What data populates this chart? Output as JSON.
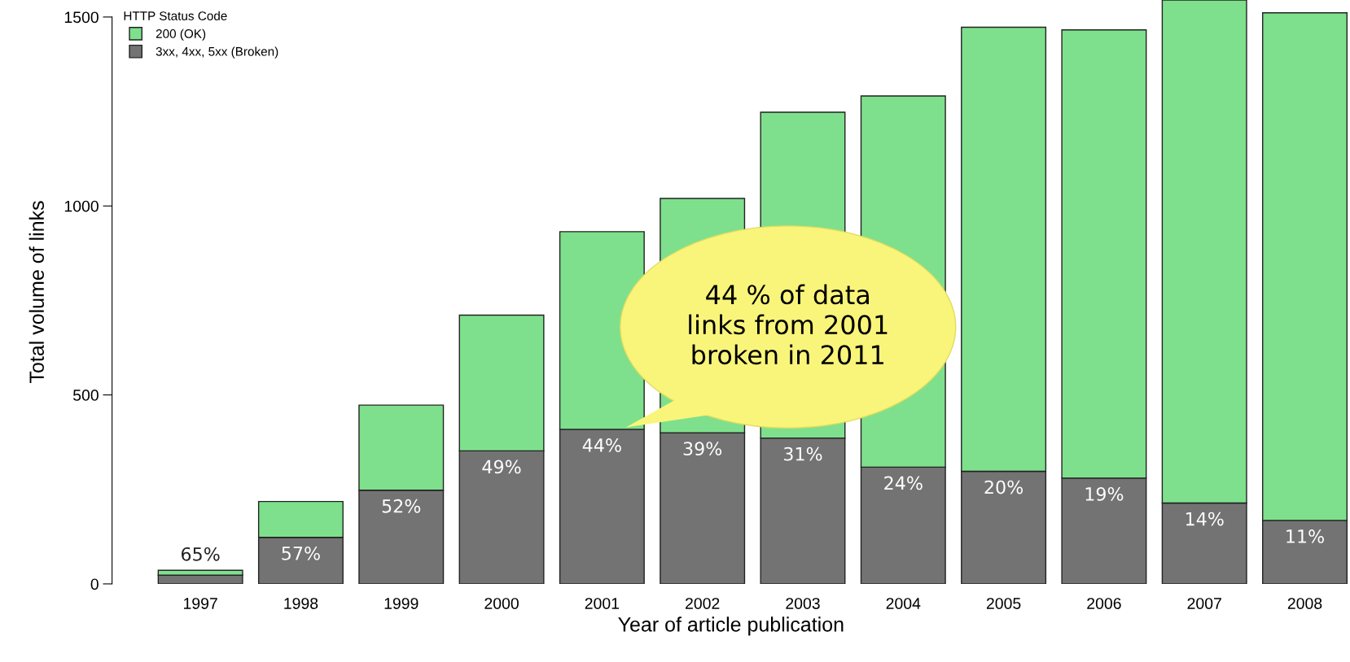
{
  "chart_data": {
    "type": "bar",
    "stacked": true,
    "xlabel": "Year of article publication",
    "ylabel": "Total volume of links",
    "legend_title": "HTTP Status Code",
    "legend": "top left",
    "categories": [
      "1997",
      "1998",
      "1999",
      "2000",
      "2001",
      "2002",
      "2003",
      "2004",
      "2005",
      "2006",
      "2007",
      "2008"
    ],
    "series": [
      {
        "name": "3xx, 4xx, 5xx (Broken)",
        "color": "#737373",
        "values": [
          23,
          123,
          248,
          352,
          409,
          400,
          386,
          309,
          298,
          280,
          214,
          168
        ]
      },
      {
        "name": "200 (OK)",
        "color": "#7ee08c",
        "values": [
          13,
          95,
          225,
          359,
          523,
          620,
          862,
          982,
          1175,
          1186,
          1331,
          1343
        ]
      }
    ],
    "ylim": [
      0,
      1545
    ],
    "yticks": [
      0,
      500,
      1000,
      1500
    ],
    "grid": false,
    "annotations": [
      "44 % of data\nlinks from 2001\nbroken in 2011",
      {
        "text": "65%",
        "x": "1997",
        "y": 23
      },
      {
        "text": "57%",
        "x": "1998",
        "y": 123
      },
      {
        "text": "52%",
        "x": "1999",
        "y": 248
      },
      {
        "text": "49%",
        "x": "2000",
        "y": 352
      },
      {
        "text": "44%",
        "x": "2001",
        "y": 409
      },
      {
        "text": "39%",
        "x": "2002",
        "y": 400
      },
      {
        "text": "31%",
        "x": "2003",
        "y": 386
      },
      {
        "text": "24%",
        "x": "2004",
        "y": 309
      },
      {
        "text": "20%",
        "x": "2005",
        "y": 298
      },
      {
        "text": "19%",
        "x": "2006",
        "y": 280
      },
      {
        "text": "14%",
        "x": "2007",
        "y": 214
      },
      {
        "text": "11%",
        "x": "2008",
        "y": 168
      }
    ]
  }
}
